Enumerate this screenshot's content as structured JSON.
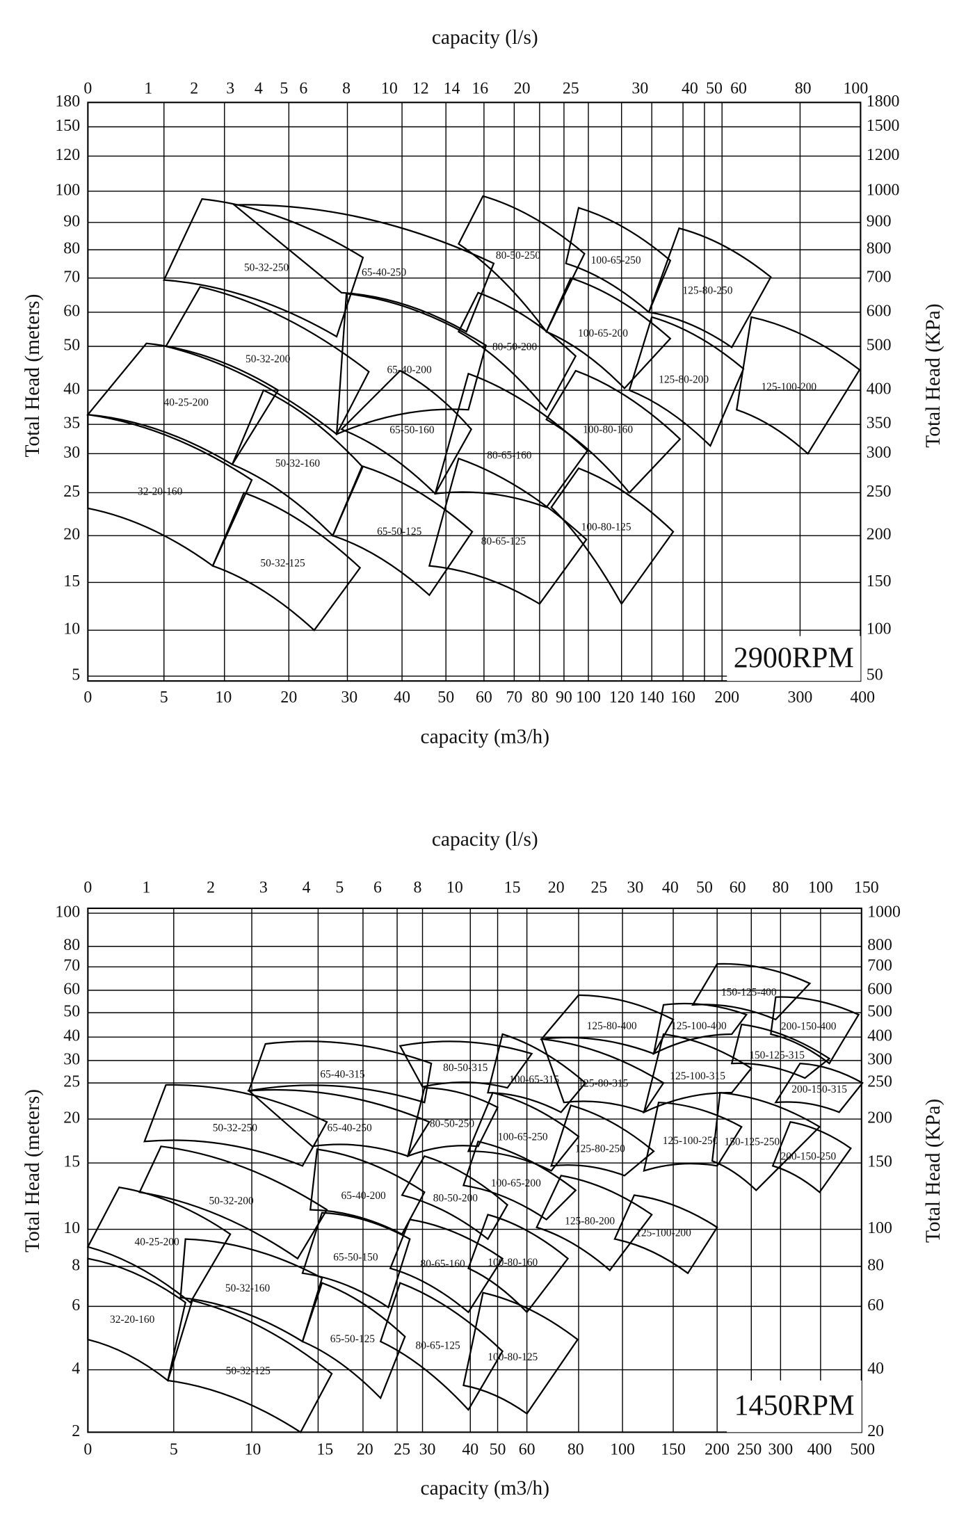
{
  "charts": [
    {
      "top_axis_title": "capacity (l/s)",
      "top_ticks": [
        0,
        1,
        2,
        3,
        4,
        5,
        6,
        8,
        10,
        12,
        14,
        16,
        20,
        25,
        30,
        40,
        50,
        60,
        80,
        100
      ],
      "bottom_axis_title": "capacity (m3/h)",
      "bottom_ticks": [
        0,
        5,
        10,
        20,
        30,
        40,
        50,
        60,
        70,
        80,
        90,
        100,
        120,
        140,
        160,
        200,
        300,
        400
      ],
      "left_axis_title": "Total Head (meters)",
      "left_ticks": [
        180,
        150,
        120,
        100,
        90,
        80,
        70,
        60,
        50,
        40,
        35,
        30,
        25,
        20,
        15,
        10,
        5
      ],
      "right_axis_title": "Total Head (KPa)",
      "right_ticks": [
        1800,
        1500,
        1200,
        1000,
        900,
        800,
        700,
        600,
        500,
        400,
        350,
        300,
        250,
        200,
        150,
        100,
        50
      ],
      "pumps": [
        "32-20-160",
        "40-25-200",
        "50-32-250",
        "50-32-200",
        "50-32-160",
        "50-32-125",
        "65-40-250",
        "65-40-200",
        "65-50-160",
        "65-50-125",
        "80-50-250",
        "80-50-200",
        "80-65-160",
        "80-65-125",
        "100-65-250",
        "100-65-200",
        "100-80-160",
        "100-80-125",
        "125-80-250",
        "125-80-200",
        "125-100-200"
      ],
      "speed_label": "2900RPM"
    },
    {
      "top_axis_title": "capacity (l/s)",
      "top_ticks": [
        0,
        1,
        2,
        3,
        4,
        5,
        6,
        8,
        10,
        15,
        20,
        25,
        30,
        40,
        50,
        60,
        80,
        100,
        150
      ],
      "bottom_axis_title": "capacity (m3/h)",
      "bottom_ticks": [
        0,
        5,
        10,
        15,
        20,
        25,
        30,
        40,
        50,
        60,
        80,
        100,
        150,
        200,
        250,
        300,
        400,
        500
      ],
      "left_axis_title": "Total Head (meters)",
      "left_ticks": [
        100,
        80,
        70,
        60,
        50,
        40,
        30,
        25,
        20,
        15,
        10,
        8,
        6,
        4,
        2
      ],
      "right_axis_title": "Total Head (KPa)",
      "right_ticks": [
        1000,
        800,
        700,
        600,
        500,
        400,
        300,
        250,
        200,
        150,
        100,
        80,
        60,
        40,
        20
      ],
      "pumps": [
        "32-20-160",
        "40-25-200",
        "50-32-250",
        "50-32-200",
        "50-32-160",
        "50-32-125",
        "65-40-315",
        "65-40-250",
        "65-40-200",
        "65-50-150",
        "65-50-125",
        "80-50-315",
        "80-50-250",
        "80-50-200",
        "80-65-160",
        "80-65-125",
        "100-65-315",
        "100-65-250",
        "100-65-200",
        "100-80-160",
        "100-80-125",
        "125-80-400",
        "125-80-315",
        "125-80-250",
        "125-80-200",
        "125-100-400",
        "125-100-315",
        "125-100-250",
        "125-100-200",
        "150-125-400",
        "150-125-315",
        "150-125-250",
        "200-150-400",
        "200-150-315",
        "200-150-250"
      ],
      "speed_label": "1450RPM"
    }
  ]
}
